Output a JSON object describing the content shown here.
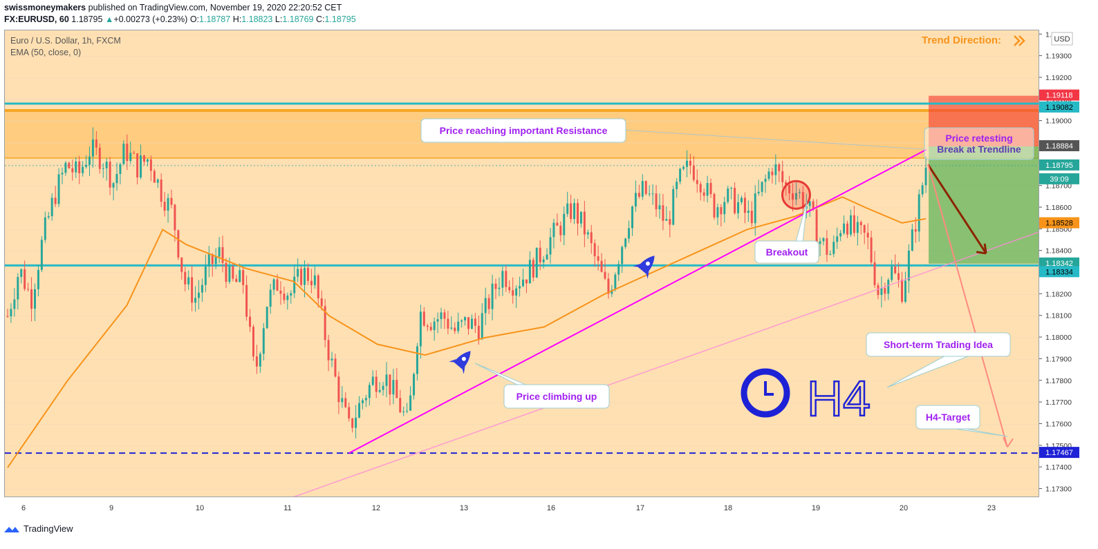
{
  "header": {
    "author": "swissmoneymakers",
    "published_text": " published on TradingView.com, November 19, 2020 22:20:52 CET",
    "symbol_label": "FX:EURUSD, 60",
    "last": "1.18795",
    "change": "+0.00273 (+0.23%)",
    "ohlc": {
      "o_label": "O:",
      "o": "1.18787",
      "h_label": "H:",
      "h": "1.18823",
      "l_label": "L:",
      "l": "1.18769",
      "c_label": "C:",
      "c": "1.18795"
    }
  },
  "legend": {
    "title": "Euro / U.S. Dollar, 1h, FXCM",
    "indicator": "EMA (50, close, 0)"
  },
  "footer": {
    "brand": "TradingView"
  },
  "colors": {
    "bull": "#26a69a",
    "bear": "#ef5350",
    "ema": "#f7931a",
    "trendline": "#ff00ff",
    "support_line": "#26b9c6",
    "background_zone": "#ffe0b2",
    "resistance_zone": "#ffcc80",
    "target_line": "#1e22d6"
  },
  "chart_data": {
    "type": "candlestick",
    "title": "Euro / U.S. Dollar, 1h, FXCM",
    "ylim": [
      1.1726,
      1.1942
    ],
    "y_ticks": [
      1.173,
      1.174,
      1.175,
      1.176,
      1.177,
      1.178,
      1.179,
      1.18,
      1.181,
      1.182,
      1.183,
      1.184,
      1.185,
      1.186,
      1.187,
      1.188,
      1.189,
      1.19,
      1.191,
      1.192,
      1.193,
      1.194
    ],
    "y_tick_labels": [
      "1.17300",
      "1.17400",
      "1.17500",
      "1.17600",
      "1.17700",
      "1.17800",
      "1.17900",
      "1.18000",
      "1.18100",
      "1.18200",
      "1.18300",
      "1.18400",
      "1.18500",
      "1.18600",
      "1.18700",
      "1.18800",
      "1.18900",
      "1.19000",
      "1.19100",
      "1.19200",
      "1.19300",
      "1.19400"
    ],
    "y_unit": "USD",
    "x_ticks": [
      "6",
      "9",
      "10",
      "11",
      "12",
      "13",
      "16",
      "17",
      "18",
      "19",
      "20",
      "23"
    ],
    "price_labels": [
      {
        "value": "1.19118",
        "bg": "#f23645",
        "fg": "#ffffff"
      },
      {
        "value": "1.19082",
        "bg": "#26b9c6",
        "fg": "#000000"
      },
      {
        "value": "1.18884",
        "bg": "#555555",
        "fg": "#ffffff"
      },
      {
        "value": "1.18795",
        "bg": "#26a69a",
        "fg": "#ffffff"
      },
      {
        "value": "39:09",
        "bg": "#26a69a",
        "fg": "#ffffff"
      },
      {
        "value": "1.18528",
        "bg": "#f7931a",
        "fg": "#000000"
      },
      {
        "value": "1.18342",
        "bg": "#26a69a",
        "fg": "#ffffff"
      },
      {
        "value": "1.18334",
        "bg": "#26b9c6",
        "fg": "#000000"
      },
      {
        "value": "1.17467",
        "bg": "#1e22d6",
        "fg": "#ffffff"
      }
    ],
    "levels": {
      "resistance_line": 1.19082,
      "resistance_zone": [
        1.1883,
        1.1905
      ],
      "support_line": 1.18334,
      "target_line": 1.17467,
      "short_entry": 1.18884,
      "short_stop": 1.19118,
      "short_target": 1.18342
    },
    "price_path": [
      [
        0,
        1.181
      ],
      [
        3,
        1.1832
      ],
      [
        6,
        1.1818
      ],
      [
        9,
        1.1846
      ],
      [
        12,
        1.1866
      ],
      [
        15,
        1.188
      ],
      [
        18,
        1.1875
      ],
      [
        21,
        1.1887
      ],
      [
        24,
        1.1883
      ],
      [
        27,
        1.1872
      ],
      [
        30,
        1.1887
      ],
      [
        33,
        1.1879
      ],
      [
        36,
        1.1883
      ],
      [
        39,
        1.1868
      ],
      [
        42,
        1.1858
      ],
      [
        45,
        1.1826
      ],
      [
        48,
        1.1818
      ],
      [
        51,
        1.1832
      ],
      [
        54,
        1.1839
      ],
      [
        57,
        1.1825
      ],
      [
        60,
        1.1826
      ],
      [
        63,
        1.1782
      ],
      [
        66,
        1.1816
      ],
      [
        69,
        1.1826
      ],
      [
        72,
        1.182
      ],
      [
        75,
        1.183
      ],
      [
        78,
        1.1828
      ],
      [
        81,
        1.18
      ],
      [
        84,
        1.1777
      ],
      [
        87,
        1.1758
      ],
      [
        90,
        1.177
      ],
      [
        93,
        1.178
      ],
      [
        96,
        1.1783
      ],
      [
        99,
        1.1772
      ],
      [
        102,
        1.176
      ],
      [
        105,
        1.1812
      ],
      [
        108,
        1.1808
      ],
      [
        111,
        1.181
      ],
      [
        114,
        1.1803
      ],
      [
        117,
        1.1807
      ],
      [
        120,
        1.1805
      ],
      [
        123,
        1.1818
      ],
      [
        126,
        1.183
      ],
      [
        129,
        1.1825
      ],
      [
        132,
        1.1829
      ],
      [
        135,
        1.1836
      ],
      [
        138,
        1.1845
      ],
      [
        141,
        1.1852
      ],
      [
        144,
        1.186
      ],
      [
        147,
        1.185
      ],
      [
        150,
        1.1835
      ],
      [
        153,
        1.182
      ],
      [
        156,
        1.184
      ],
      [
        159,
        1.186
      ],
      [
        162,
        1.1868
      ],
      [
        165,
        1.1862
      ],
      [
        168,
        1.1852
      ],
      [
        171,
        1.1872
      ],
      [
        174,
        1.188
      ],
      [
        177,
        1.1872
      ],
      [
        180,
        1.186
      ],
      [
        183,
        1.1865
      ],
      [
        186,
        1.1862
      ],
      [
        189,
        1.1855
      ],
      [
        192,
        1.1868
      ],
      [
        195,
        1.188
      ],
      [
        198,
        1.187
      ],
      [
        201,
        1.1868
      ],
      [
        204,
        1.186
      ],
      [
        207,
        1.1845
      ],
      [
        210,
        1.1838
      ],
      [
        213,
        1.1856
      ],
      [
        216,
        1.1848
      ],
      [
        219,
        1.1846
      ],
      [
        222,
        1.182
      ],
      [
        225,
        1.1832
      ],
      [
        228,
        1.1822
      ],
      [
        231,
        1.185
      ],
      [
        234,
        1.18795
      ]
    ],
    "ema_path": [
      [
        0,
        1.174
      ],
      [
        15,
        1.178
      ],
      [
        30,
        1.1815
      ],
      [
        39,
        1.185
      ],
      [
        45,
        1.1843
      ],
      [
        60,
        1.1832
      ],
      [
        72,
        1.1826
      ],
      [
        81,
        1.181
      ],
      [
        93,
        1.1797
      ],
      [
        105,
        1.1792
      ],
      [
        120,
        1.18
      ],
      [
        135,
        1.1805
      ],
      [
        150,
        1.182
      ],
      [
        162,
        1.183
      ],
      [
        174,
        1.184
      ],
      [
        186,
        1.185
      ],
      [
        198,
        1.1856
      ],
      [
        210,
        1.1865
      ],
      [
        216,
        1.186
      ],
      [
        225,
        1.1853
      ],
      [
        231,
        1.1855
      ]
    ],
    "bar_count": 270,
    "annotations": {
      "resistance_text": "Price reaching important Resistance",
      "retest_text": "Price retesting",
      "break_text": "Break at Trendline",
      "breakout_text": "Breakout",
      "climb_text": "Price climbing up",
      "idea_text": "Short-term Trading Idea",
      "target_text": "H4-Target",
      "trend_text": "Trend Direction:",
      "timeframe_text": "H4"
    }
  }
}
